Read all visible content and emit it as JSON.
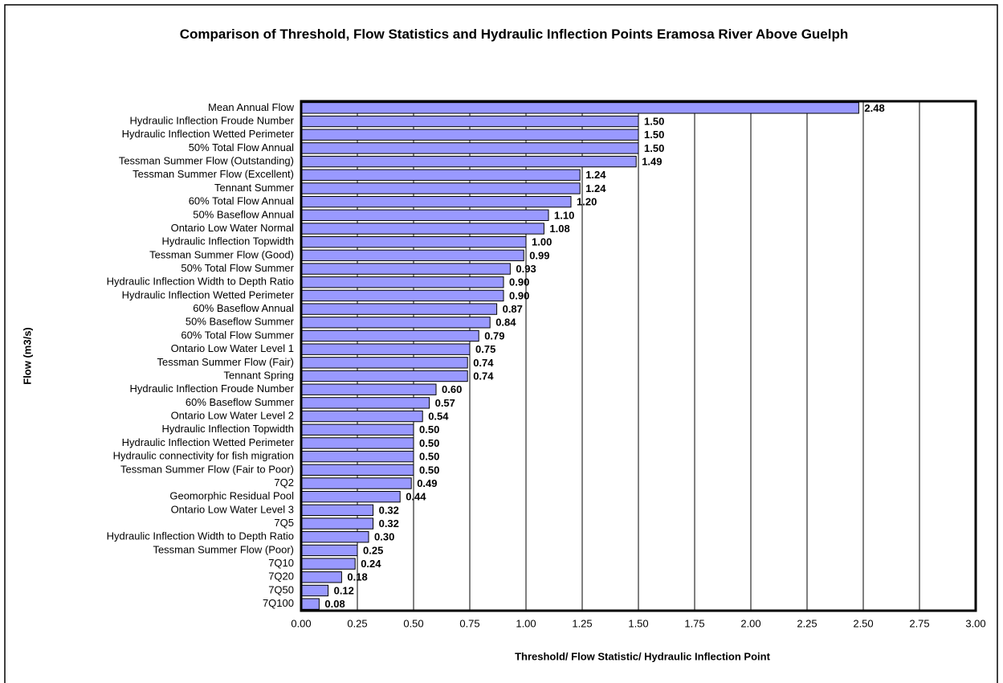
{
  "chart_data": {
    "type": "barh",
    "title": "Comparison of Threshold, Flow Statistics and Hydraulic Inflection Points Eramosa River Above Guelph",
    "x_label": "Threshold/ Flow Statistic/ Hydraulic Inflection Point",
    "y_label": "Flow (m3/s)",
    "categories": [
      "Mean Annual Flow",
      "Hydraulic Inflection Froude Number",
      "Hydraulic Inflection Wetted Perimeter",
      "50% Total Flow Annual",
      "Tessman Summer Flow (Outstanding)",
      "Tessman Summer Flow (Excellent)",
      "Tennant Summer",
      "60% Total Flow Annual",
      "50% Baseflow Annual",
      "Ontario Low Water Normal",
      "Hydraulic Inflection Topwidth",
      "Tessman Summer Flow (Good)",
      "50% Total Flow Summer",
      "Hydraulic Inflection Width to Depth Ratio",
      "Hydraulic Inflection Wetted Perimeter",
      "60% Baseflow Annual",
      "50% Baseflow Summer",
      "60% Total Flow Summer",
      "Ontario Low Water Level 1",
      "Tessman Summer Flow (Fair)",
      "Tennant Spring",
      "Hydraulic Inflection Froude Number",
      "60% Baseflow Summer",
      "Ontario Low Water Level 2",
      "Hydraulic Inflection Topwidth",
      "Hydraulic Inflection Wetted Perimeter",
      "Hydraulic connectivity for fish migration",
      "Tessman Summer Flow (Fair to Poor)",
      "7Q2",
      "Geomorphic Residual Pool",
      "Ontario Low Water Level 3",
      "7Q5",
      "Hydraulic Inflection Width to Depth Ratio",
      "Tessman Summer Flow (Poor)",
      "7Q10",
      "7Q20",
      "7Q50",
      "7Q100"
    ],
    "values": [
      2.48,
      1.5,
      1.5,
      1.5,
      1.49,
      1.24,
      1.24,
      1.2,
      1.1,
      1.08,
      1,
      0.99,
      0.93,
      0.9,
      0.9,
      0.87,
      0.84,
      0.79,
      0.75,
      0.74,
      0.74,
      0.6,
      0.57,
      0.54,
      0.5,
      0.5,
      0.5,
      0.5,
      0.49,
      0.44,
      0.32,
      0.32,
      0.3,
      0.25,
      0.24,
      0.18,
      0.12,
      0.08
    ],
    "value_labels": [
      "2.48",
      "1.50",
      "1.50",
      "1.50",
      "1.49",
      "1.24",
      "1.24",
      "1.20",
      "1.10",
      "1.08",
      "1.00",
      "0.99",
      "0.93",
      "0.90",
      "0.90",
      "0.87",
      "0.84",
      "0.79",
      "0.75",
      "0.74",
      "0.74",
      "0.60",
      "0.57",
      "0.54",
      "0.50",
      "0.50",
      "0.50",
      "0.50",
      "0.49",
      "0.44",
      "0.32",
      "0.32",
      "0.30",
      "0.25",
      "0.24",
      "0.18",
      "0.12",
      "0.08"
    ],
    "color": "#9999ff",
    "xlim": [
      0,
      3
    ],
    "xticks": [
      {
        "value": 0,
        "label": "0.00"
      },
      {
        "value": 0.25,
        "label": "0.25"
      },
      {
        "value": 0.5,
        "label": "0.50"
      },
      {
        "value": 0.75,
        "label": "0.75"
      },
      {
        "value": 1,
        "label": "1.00"
      },
      {
        "value": 1.25,
        "label": "1.25"
      },
      {
        "value": 1.5,
        "label": "1.50"
      },
      {
        "value": 1.75,
        "label": "1.75"
      },
      {
        "value": 2,
        "label": "2.00"
      },
      {
        "value": 2.25,
        "label": "2.25"
      },
      {
        "value": 2.5,
        "label": "2.50"
      },
      {
        "value": 2.75,
        "label": "2.75"
      },
      {
        "value": 3,
        "label": "3.00"
      }
    ],
    "grid": true
  }
}
